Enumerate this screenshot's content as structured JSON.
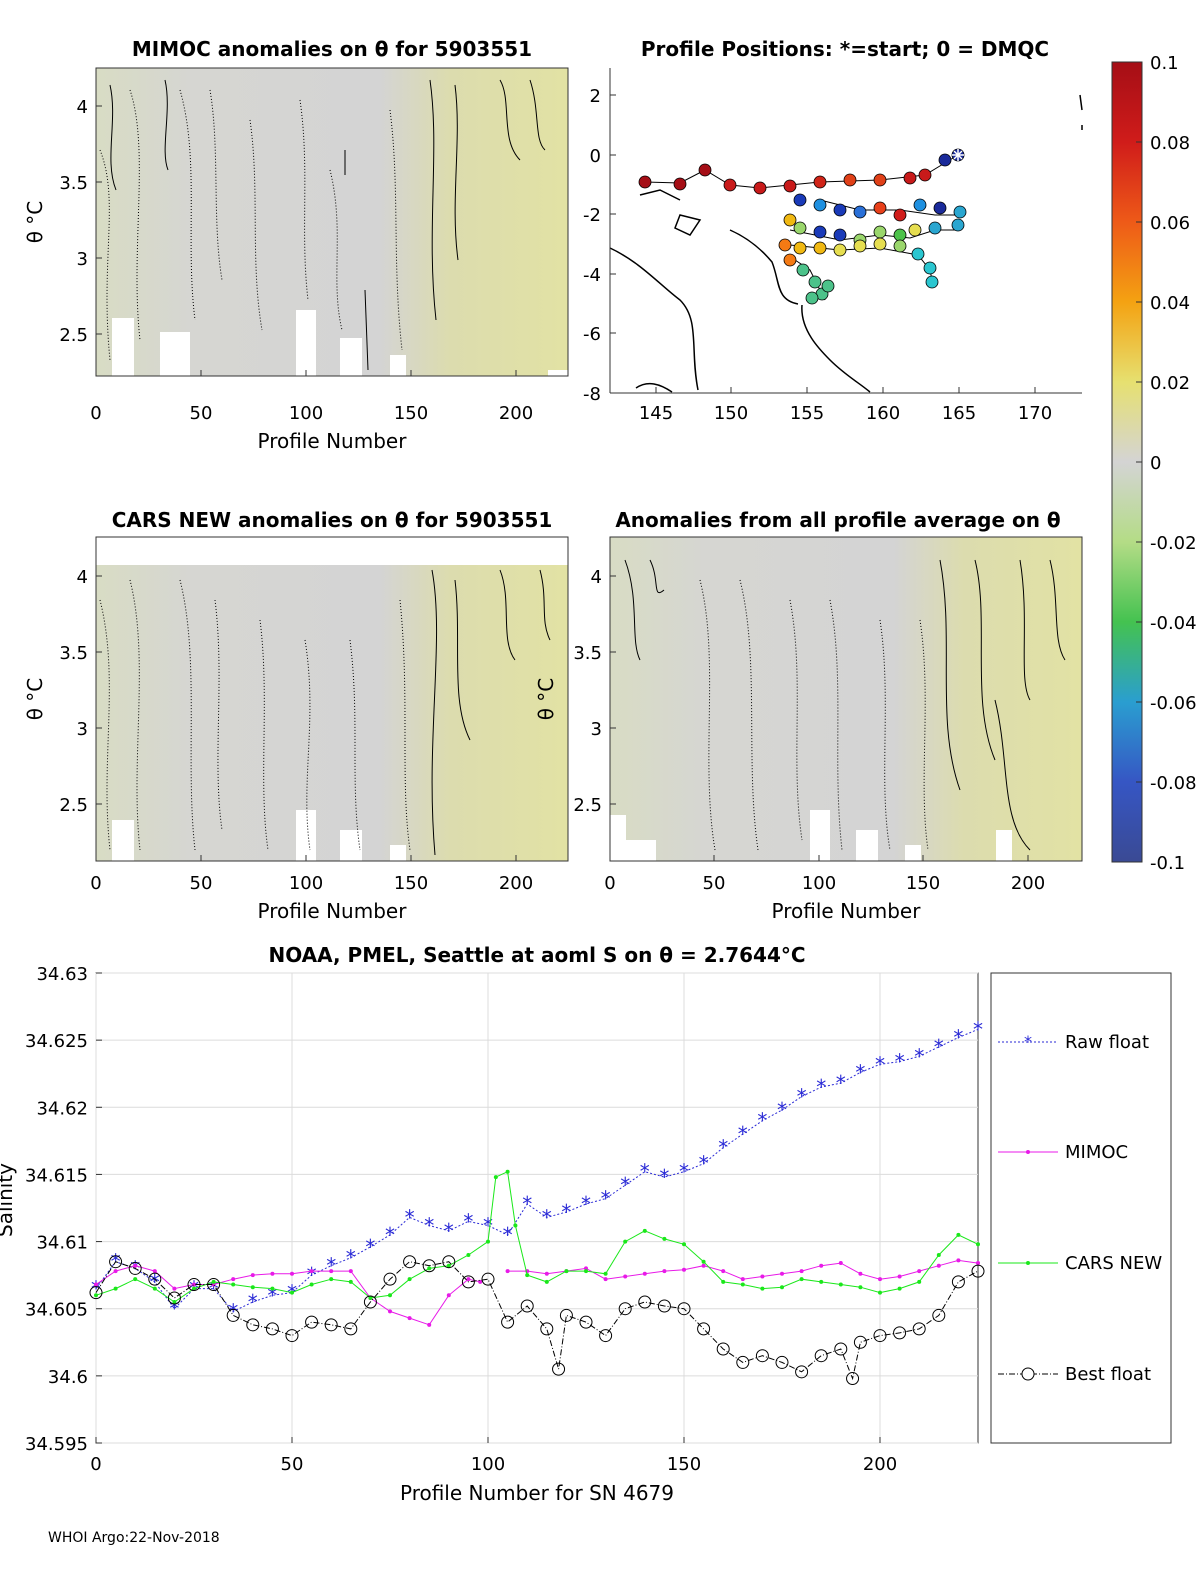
{
  "panels": {
    "mimoc": {
      "title": "MIMOC anomalies on θ  for 5903551",
      "xlabel": "Profile Number",
      "ylabel": "θ °C",
      "xticks": [
        "0",
        "50",
        "100",
        "150",
        "200"
      ],
      "yticks": [
        "4",
        "3.5",
        "3",
        "2.5"
      ]
    },
    "positions": {
      "title": "Profile Positions: *=start; 0 = DMQC",
      "xticks": [
        "145",
        "150",
        "155",
        "160",
        "165",
        "170"
      ],
      "yticks": [
        "2",
        "0",
        "-2",
        "-4",
        "-6",
        "-8"
      ]
    },
    "cars": {
      "title": "CARS NEW anomalies on θ for 5903551",
      "xlabel": "Profile Number",
      "ylabel": "θ °C",
      "xticks": [
        "0",
        "50",
        "100",
        "150",
        "200"
      ],
      "yticks": [
        "4",
        "3.5",
        "3",
        "2.5"
      ]
    },
    "average": {
      "title": "Anomalies from all profile average on θ",
      "xlabel": "Profile Number",
      "ylabel": "θ °C",
      "xticks": [
        "0",
        "50",
        "100",
        "150",
        "200"
      ],
      "yticks": [
        "4",
        "3.5",
        "3",
        "2.5"
      ]
    }
  },
  "colorbar": {
    "ticks": [
      "0.1",
      "0.08",
      "0.06",
      "0.04",
      "0.02",
      "0",
      "-0.02",
      "-0.04",
      "-0.06",
      "-0.08",
      "-0.1"
    ],
    "colors": [
      "#a50e16",
      "#c81a1a",
      "#e8401a",
      "#f47a14",
      "#f0b812",
      "#e6de50",
      "#dcdca0",
      "#d2d2d2",
      "#c6e09a",
      "#9ad66c",
      "#4cc24a",
      "#2aa6a0",
      "#2a7ed6",
      "#3a56c4",
      "#3a4a96"
    ]
  },
  "footer": "WHOI Argo:22-Nov-2018",
  "chart_data": {
    "type": "line",
    "title": "NOAA, PMEL, Seattle at aoml S on θ = 2.7644°C",
    "xlabel": "Profile Number for SN 4679",
    "ylabel": "Salinity",
    "xlim": [
      0,
      225
    ],
    "ylim": [
      34.595,
      34.63
    ],
    "xticks": [
      0,
      50,
      100,
      150,
      200
    ],
    "yticks": [
      34.595,
      34.6,
      34.605,
      34.61,
      34.615,
      34.62,
      34.625,
      34.63
    ],
    "ytick_labels": [
      "34.595",
      "34.6",
      "34.605",
      "34.61",
      "34.615",
      "34.62",
      "34.625",
      "34.63"
    ],
    "legend": {
      "position": "right",
      "entries": [
        "Raw float",
        "MIMOC",
        "CARS NEW",
        "Best float"
      ]
    },
    "series": [
      {
        "name": "Raw float",
        "color": "#2a2ad6",
        "marker": "star",
        "x": [
          0,
          5,
          10,
          15,
          20,
          25,
          30,
          35,
          40,
          45,
          50,
          55,
          60,
          65,
          70,
          75,
          80,
          85,
          90,
          95,
          100,
          105,
          110,
          115,
          120,
          125,
          130,
          135,
          140,
          145,
          150,
          155,
          160,
          165,
          170,
          175,
          180,
          185,
          190,
          195,
          200,
          205,
          210,
          215,
          220,
          225
        ],
        "y": [
          34.6065,
          34.6085,
          34.608,
          34.607,
          34.605,
          34.6065,
          34.6065,
          34.6048,
          34.6055,
          34.606,
          34.6062,
          34.6075,
          34.6082,
          34.6088,
          34.6096,
          34.6105,
          34.6118,
          34.6112,
          34.6108,
          34.6115,
          34.6112,
          34.6105,
          34.6128,
          34.6118,
          34.6122,
          34.6128,
          34.6132,
          34.6142,
          34.6152,
          34.6148,
          34.6152,
          34.6158,
          34.617,
          34.618,
          34.619,
          34.6198,
          34.6208,
          34.6215,
          34.6218,
          34.6226,
          34.6232,
          34.6234,
          34.6238,
          34.6245,
          34.6252,
          34.6258
        ]
      },
      {
        "name": "MIMOC",
        "color": "#e81ae8",
        "marker": "dot",
        "x": [
          0,
          5,
          10,
          15,
          20,
          25,
          30,
          35,
          40,
          45,
          50,
          55,
          60,
          65,
          70,
          75,
          80,
          85,
          90,
          95,
          98
        ],
        "y": [
          34.6068,
          34.6078,
          34.6082,
          34.6078,
          34.6065,
          34.6068,
          34.6068,
          34.6072,
          34.6075,
          34.6076,
          34.6076,
          34.6078,
          34.6078,
          34.6078,
          34.6058,
          34.6048,
          34.6043,
          34.6038,
          34.606,
          34.6072,
          34.607
        ],
        "x2": [
          105,
          110,
          115,
          120,
          125,
          130,
          135,
          140,
          145,
          150,
          155,
          160,
          165,
          170,
          175,
          180,
          185,
          190,
          195,
          200,
          205,
          210,
          215,
          220,
          225
        ],
        "y2": [
          34.6078,
          34.6078,
          34.6076,
          34.6078,
          34.608,
          34.6072,
          34.6074,
          34.6076,
          34.6078,
          34.6079,
          34.6082,
          34.6078,
          34.6072,
          34.6074,
          34.6076,
          34.6078,
          34.6082,
          34.6084,
          34.6076,
          34.6072,
          34.6074,
          34.6078,
          34.6082,
          34.6086,
          34.6084
        ]
      },
      {
        "name": "CARS NEW",
        "color": "#1ae81a",
        "marker": "dot",
        "x": [
          0,
          5,
          10,
          15,
          20,
          25,
          30,
          35,
          40,
          45,
          50,
          55,
          60,
          65,
          70,
          75,
          80,
          85,
          90,
          95,
          100,
          102,
          105,
          107,
          110,
          115,
          120,
          125,
          130,
          135,
          140,
          145,
          150,
          155,
          160,
          165,
          170,
          175,
          180,
          185,
          190,
          195,
          200,
          205,
          210,
          215,
          220,
          225
        ],
        "y": [
          34.606,
          34.6065,
          34.6072,
          34.6065,
          34.6055,
          34.6065,
          34.607,
          34.6068,
          34.6066,
          34.6065,
          34.6062,
          34.6068,
          34.6072,
          34.607,
          34.6058,
          34.606,
          34.6072,
          34.608,
          34.6082,
          34.609,
          34.61,
          34.6148,
          34.6152,
          34.6112,
          34.6075,
          34.607,
          34.6078,
          34.6078,
          34.6076,
          34.61,
          34.6108,
          34.6102,
          34.6098,
          34.6085,
          34.607,
          34.6068,
          34.6065,
          34.6066,
          34.6072,
          34.607,
          34.6068,
          34.6066,
          34.6062,
          34.6065,
          34.607,
          34.609,
          34.6105,
          34.6098
        ]
      },
      {
        "name": "Best float",
        "color": "#000000",
        "marker": "circle",
        "x": [
          0,
          5,
          10,
          15,
          20,
          25,
          30,
          35,
          40,
          45,
          50,
          55,
          60,
          65,
          70,
          75,
          80,
          85,
          90,
          95,
          100,
          105,
          110,
          115,
          118,
          120,
          125,
          130,
          135,
          140,
          145,
          150,
          155,
          160,
          165,
          170,
          175,
          180,
          185,
          190,
          193,
          195,
          200,
          205,
          210,
          215,
          220,
          225
        ],
        "y": [
          34.6062,
          34.6085,
          34.608,
          34.6072,
          34.6058,
          34.6068,
          34.6068,
          34.6045,
          34.6038,
          34.6035,
          34.603,
          34.604,
          34.6038,
          34.6035,
          34.6055,
          34.6072,
          34.6085,
          34.6082,
          34.6085,
          34.607,
          34.6072,
          34.604,
          34.6052,
          34.6035,
          34.6005,
          34.6045,
          34.604,
          34.603,
          34.605,
          34.6055,
          34.6052,
          34.605,
          34.6035,
          34.602,
          34.601,
          34.6015,
          34.601,
          34.6003,
          34.6015,
          34.602,
          34.5998,
          34.6025,
          34.603,
          34.6032,
          34.6035,
          34.6045,
          34.607,
          34.6078
        ]
      }
    ]
  }
}
